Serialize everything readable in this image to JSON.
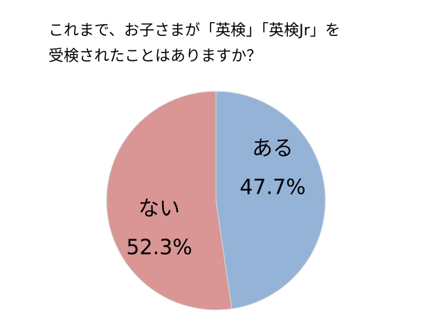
{
  "chart_data": {
    "type": "pie",
    "title": [
      "これまで、お子さまが「英検」「英検Jr」を",
      "受検されたことはありますか？"
    ],
    "categories": [
      "ある",
      "ない"
    ],
    "values": [
      47.7,
      52.3
    ],
    "value_labels": [
      "47.7%",
      "52.3%"
    ],
    "colors": [
      "#95b3d7",
      "#d99694"
    ]
  }
}
